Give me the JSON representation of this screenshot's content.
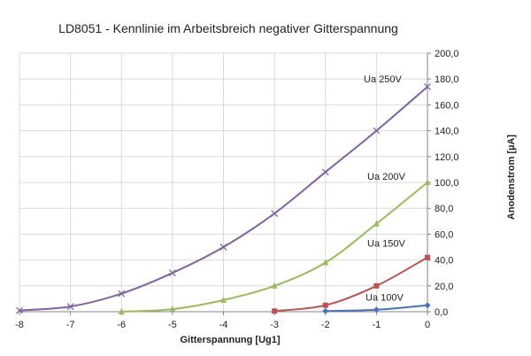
{
  "chart_data": {
    "type": "line",
    "title": "LD8051 - Kennlinie im Arbeitsbreich negativer Gitterspannung",
    "xlabel": "Gitterspannung [Ug1]",
    "ylabel": "Anodenstrom [µA]",
    "xlim": [
      -8,
      0
    ],
    "ylim": [
      0,
      200
    ],
    "x_ticks": [
      "-8",
      "-7",
      "-6",
      "-5",
      "-4",
      "-3",
      "-2",
      "-1",
      "0"
    ],
    "y_ticks": [
      "0,0",
      "20,0",
      "40,0",
      "60,0",
      "80,0",
      "100,0",
      "120,0",
      "140,0",
      "160,0",
      "180,0",
      "200,0"
    ],
    "grid": true,
    "y_axis_position": "right",
    "series": [
      {
        "name": "Ua 100V",
        "color": "#4472C4",
        "marker": "diamond",
        "x": [
          -2,
          -1,
          0
        ],
        "y": [
          0.5,
          1.5,
          5
        ]
      },
      {
        "name": "Ua 150V",
        "color": "#C0504D",
        "marker": "square",
        "x": [
          -3,
          -2,
          -1,
          0
        ],
        "y": [
          0.5,
          5,
          20,
          42
        ]
      },
      {
        "name": "Ua 200V",
        "color": "#9BBB59",
        "marker": "triangle",
        "x": [
          -6,
          -5,
          -4,
          -3,
          -2,
          -1,
          0
        ],
        "y": [
          0,
          2,
          9,
          20,
          38,
          68,
          100
        ]
      },
      {
        "name": "Ua 250V",
        "color": "#8064A2",
        "marker": "x",
        "x": [
          -8,
          -7,
          -6,
          -5,
          -4,
          -3,
          -2,
          -1,
          0
        ],
        "y": [
          1,
          4,
          14,
          30,
          50,
          76,
          108,
          140,
          174
        ]
      }
    ]
  }
}
